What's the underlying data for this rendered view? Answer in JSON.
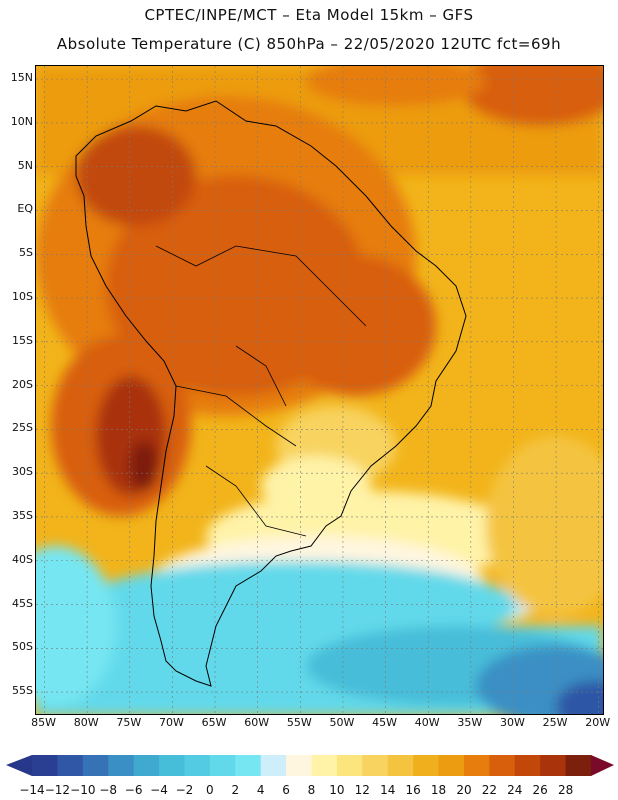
{
  "header": {
    "line1": "CPTEC/INPE/MCT –  Eta Model 15km – GFS",
    "line2": "Absolute Temperature (C) 850hPa – 22/05/2020 12UTC fct=69h"
  },
  "map": {
    "variable": "Absolute Temperature (C) 850hPa",
    "lat_labels": [
      "15N",
      "10N",
      "5N",
      "EQ",
      "5S",
      "10S",
      "15S",
      "20S",
      "25S",
      "30S",
      "35S",
      "40S",
      "45S",
      "50S",
      "55S"
    ],
    "lon_labels": [
      "85W",
      "80W",
      "75W",
      "70W",
      "65W",
      "60W",
      "55W",
      "50W",
      "45W",
      "40W",
      "35W",
      "30W",
      "25W",
      "20W"
    ],
    "lat_range": [
      16.5,
      -57.5
    ],
    "lon_range": [
      -86,
      -19.5
    ]
  },
  "colorbar": {
    "labels": [
      "-14",
      "-12",
      "-10",
      "-8",
      "-6",
      "-4",
      "-2",
      "0",
      "2",
      "4",
      "6",
      "8",
      "10",
      "12",
      "14",
      "16",
      "18",
      "20",
      "22",
      "24",
      "26",
      "28"
    ],
    "colors": [
      "#2a3f92",
      "#2f57a6",
      "#3573b6",
      "#3a8fc4",
      "#3fa9d0",
      "#46bdd9",
      "#53cbe2",
      "#62d9ea",
      "#76e6f2",
      "#cfeefb",
      "#fff6e0",
      "#fff3a8",
      "#fce57d",
      "#f8d35f",
      "#f4c441",
      "#f0b01d",
      "#ec9c10",
      "#e67d0c",
      "#d85f0b",
      "#c24809",
      "#a9330a",
      "#7d1f0d"
    ],
    "end_low": "#27378a",
    "end_high": "#7a0a2a"
  }
}
